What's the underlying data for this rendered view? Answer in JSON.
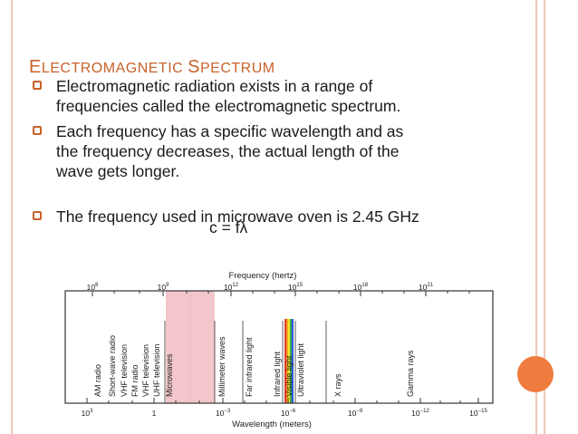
{
  "slide": {
    "title_first_big": "E",
    "title_first_rest": "LECTROMAGNETIC ",
    "title_second_big": "S",
    "title_second_rest": "PECTRUM",
    "bullets": [
      {
        "line1": "Electromagnetic radiation exists in a range of",
        "line2": "frequencies called the electromagnetic spectrum."
      },
      {
        "line1": "Each frequency has a specific wavelength and as",
        "line2": "the frequency decreases, the actual length of the",
        "line3": "wave gets longer."
      },
      {
        "line1": "The frequency used in microwave oven is 2.45 GHz"
      }
    ],
    "formula": "c = fλ"
  },
  "spectrum": {
    "frequency_label": "Frequency (hertz)",
    "wavelength_label": "Wavelength (meters)",
    "frequency_ticks": [
      {
        "base": "10",
        "exp": "6"
      },
      {
        "base": "10",
        "exp": "9"
      },
      {
        "base": "10",
        "exp": "12"
      },
      {
        "base": "10",
        "exp": "15"
      },
      {
        "base": "10",
        "exp": "18"
      },
      {
        "base": "10",
        "exp": "21"
      }
    ],
    "wavelength_ticks": [
      {
        "base": "10",
        "exp": "3"
      },
      {
        "base": "1",
        "exp": ""
      },
      {
        "base": "10",
        "exp": "−3"
      },
      {
        "base": "10",
        "exp": "−6"
      },
      {
        "base": "10",
        "exp": "−9"
      },
      {
        "base": "10",
        "exp": "−12"
      },
      {
        "base": "10",
        "exp": "−15"
      }
    ],
    "bands": [
      "AM radio",
      "Short-wave radio",
      "VHF television",
      "FM radio",
      "VHF television",
      "UHF television",
      "Microwaves",
      "Millimeter waves",
      "Far infrared light",
      "Infrared light",
      "Visible light",
      "Ultraviolet light",
      "X rays",
      "Gamma rays"
    ],
    "colors": {
      "microwave_region": "#f2c6ca",
      "visible_band": [
        "#e53b2c",
        "#f7a21b",
        "#f4e52a",
        "#3aa655",
        "#2c5bd6"
      ]
    }
  }
}
